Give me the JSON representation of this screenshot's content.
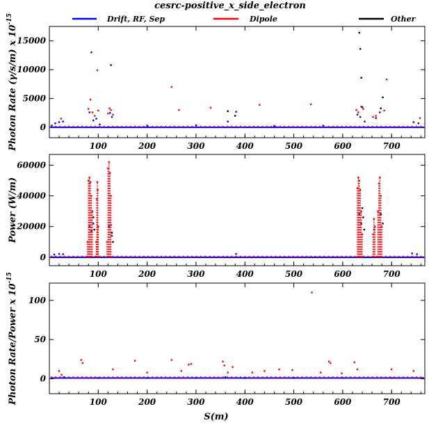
{
  "chart_data": [
    {
      "type": "scatter",
      "title": "cesrc-positive_x_side_electron",
      "legend": {
        "placement": "top",
        "entries": [
          {
            "label": "Drift, RF, Sep",
            "color": "#0000ff"
          },
          {
            "label": "Dipole",
            "color": "#ff0000"
          },
          {
            "label": "Other",
            "color": "#000000"
          }
        ]
      },
      "ylabel_main": "Photon Rate (γ/s/m) x 10",
      "ylabel_exp": "-15",
      "xlim": [
        0,
        768
      ],
      "ylim": [
        -1800,
        17500
      ],
      "xticks": [
        100,
        200,
        300,
        400,
        500,
        600,
        700
      ],
      "yticks": [
        0,
        5000,
        10000,
        15000
      ],
      "base_level": 0,
      "series": [
        {
          "name": "Drift, RF, Sep",
          "color": "#0000ff",
          "x": [
            5,
            12,
            20,
            28,
            82,
            86,
            90,
            96,
            103,
            124,
            128,
            200,
            300,
            365,
            382,
            460,
            560,
            630,
            636,
            645,
            668,
            676,
            745,
            755
          ],
          "y": [
            300,
            700,
            900,
            1000,
            2600,
            13000,
            1200,
            1500,
            500,
            2500,
            1800,
            300,
            350,
            1000,
            2700,
            250,
            300,
            2200,
            1800,
            1000,
            1600,
            2600,
            900,
            700
          ]
        },
        {
          "name": "Dipole",
          "color": "#ff0000",
          "x": [
            24,
            80,
            84,
            88,
            93,
            98,
            100,
            120,
            123,
            126,
            130,
            250,
            265,
            330,
            430,
            535,
            628,
            632,
            638,
            642,
            662,
            668,
            685,
            690,
            758
          ],
          "y": [
            1500,
            3200,
            4800,
            2600,
            2000,
            9900,
            2900,
            2400,
            3300,
            3000,
            2200,
            7000,
            3000,
            3400,
            3900,
            4000,
            3000,
            2600,
            3600,
            3200,
            1800,
            2000,
            2900,
            8300,
            1600
          ]
        },
        {
          "name": "Other",
          "color": "#000000",
          "x": [
            126,
            365,
            380,
            634,
            636,
            638,
            640,
            678,
            682
          ],
          "y": [
            10800,
            2800,
            2000,
            16400,
            13600,
            8600,
            3500,
            3300,
            5200
          ]
        }
      ]
    },
    {
      "type": "scatter",
      "ylabel_main": "Power (W/m)",
      "xlim": [
        0,
        768
      ],
      "ylim": [
        -5500,
        67000
      ],
      "xticks": [
        100,
        200,
        300,
        400,
        500,
        600,
        700
      ],
      "yticks": [
        0,
        20000,
        40000,
        60000
      ],
      "base_level": 0,
      "series": [
        {
          "name": "Drift, RF, Sep",
          "color": "#0000ff",
          "x": [
            10,
            20,
            28,
            82,
            86,
            90,
            122,
            126,
            128,
            382,
            634,
            638,
            664,
            742,
            752
          ],
          "y": [
            1800,
            2200,
            2000,
            20000,
            17000,
            22000,
            20000,
            21000,
            14000,
            2200,
            28000,
            22000,
            18000,
            2500,
            2000
          ]
        },
        {
          "name": "Dipole",
          "color": "#ff0000",
          "x": [
            78,
            80,
            82,
            84,
            86,
            88,
            96,
            97,
            98,
            99,
            100,
            118,
            120,
            122,
            124,
            126,
            630,
            632,
            634,
            636,
            638,
            640,
            662,
            664,
            666,
            672,
            674,
            676,
            678,
            680
          ],
          "y": [
            10000,
            50000,
            52000,
            49000,
            40000,
            30000,
            10000,
            38000,
            49000,
            44000,
            20000,
            10000,
            58000,
            62000,
            55000,
            40000,
            45000,
            52000,
            50000,
            44000,
            30000,
            15000,
            15000,
            25000,
            20000,
            30000,
            48000,
            52000,
            40000,
            20000
          ]
        },
        {
          "name": "Other",
          "color": "#000000",
          "x": [
            90,
            92,
            128,
            130,
            640,
            642,
            644,
            678,
            682
          ],
          "y": [
            26000,
            18000,
            16000,
            10000,
            32000,
            26000,
            18000,
            28000,
            22000
          ]
        }
      ]
    },
    {
      "type": "scatter",
      "ylabel_main": "Photon Rate/Power x 10",
      "ylabel_exp": "-15",
      "xlabel": "S(m)",
      "xlim": [
        0,
        768
      ],
      "ylim": [
        -19,
        122
      ],
      "xticks": [
        100,
        200,
        300,
        400,
        500,
        600,
        700
      ],
      "yticks": [
        0,
        50,
        100
      ],
      "base_level": 1,
      "series": [
        {
          "name": "Drift, RF, Sep",
          "color": "#0000ff",
          "x": [
            30,
            100,
            200,
            300,
            360,
            400,
            500,
            600,
            700
          ],
          "y": [
            2,
            1,
            1,
            1,
            2,
            1,
            1,
            1,
            1
          ]
        },
        {
          "name": "Dipole",
          "color": "#ff0000",
          "x": [
            20,
            25,
            65,
            68,
            130,
            175,
            200,
            250,
            270,
            285,
            290,
            355,
            358,
            365,
            375,
            415,
            440,
            470,
            497,
            537,
            555,
            572,
            575,
            598,
            624,
            630,
            700,
            745
          ],
          "y": [
            10,
            5,
            24,
            20,
            12,
            23,
            8,
            24,
            10,
            18,
            19,
            22,
            17,
            8,
            15,
            8,
            10,
            12,
            11,
            110,
            8,
            22,
            20,
            7,
            21,
            12,
            12,
            10
          ]
        }
      ]
    }
  ]
}
